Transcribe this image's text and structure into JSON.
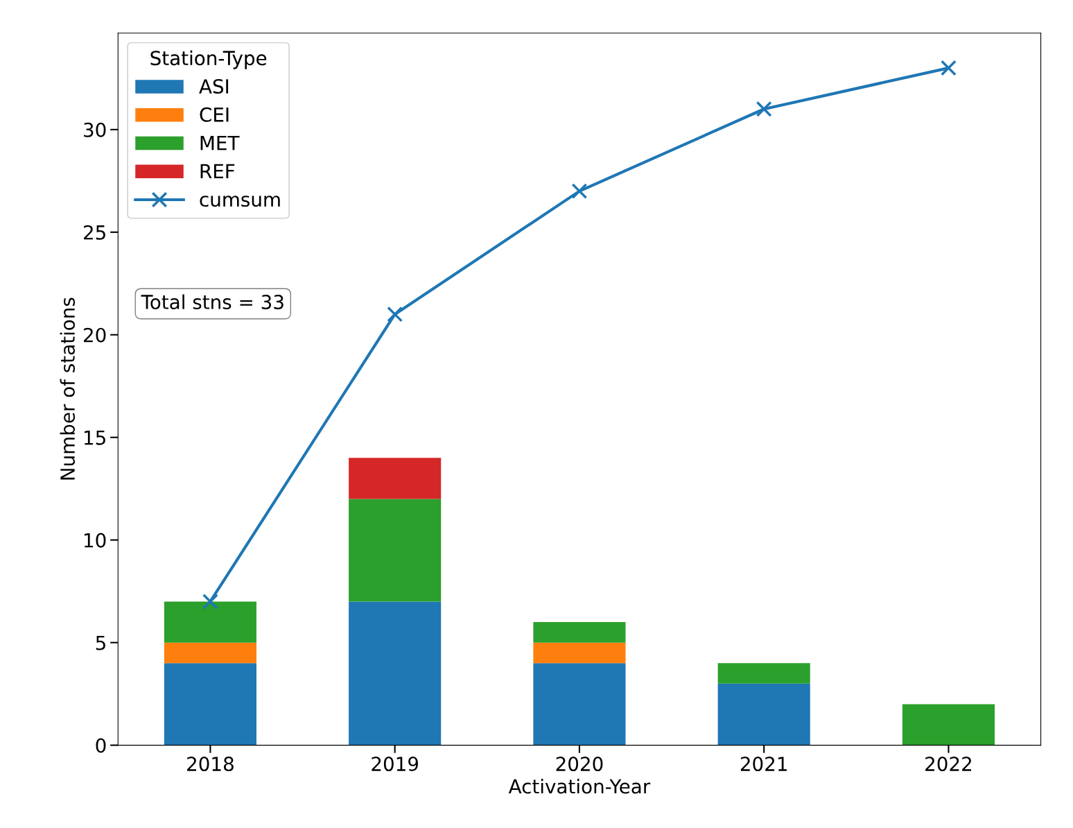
{
  "chart_data": {
    "type": "bar",
    "stacked": true,
    "xlabel": "Activation-Year",
    "ylabel": "Number of stations",
    "legend_title": "Station-Type",
    "legend": "top left",
    "grid": false,
    "x": [
      2018,
      2019,
      2020,
      2021,
      2022
    ],
    "series": [
      {
        "name": "ASI",
        "color": "#1f77b4",
        "values": [
          4,
          7,
          4,
          3,
          0
        ]
      },
      {
        "name": "CEI",
        "color": "#ff7f0e",
        "values": [
          1,
          0,
          1,
          0,
          0
        ]
      },
      {
        "name": "MET",
        "color": "#2ca02c",
        "values": [
          2,
          5,
          1,
          1,
          2
        ]
      },
      {
        "name": "REF",
        "color": "#d62728",
        "values": [
          0,
          2,
          0,
          0,
          0
        ]
      },
      {
        "name": "cumsum",
        "type": "line",
        "marker": "cross",
        "line_style": "solid",
        "color": "#1f77b4",
        "values": [
          7,
          21,
          27,
          31,
          33
        ]
      }
    ],
    "xlim": [
      2017.5,
      2022.5
    ],
    "xticks": [
      2018,
      2019,
      2020,
      2021,
      2022
    ],
    "ylim": [
      0,
      34.7
    ],
    "yticks": [
      0,
      5,
      10,
      15,
      20,
      25,
      30
    ],
    "annotations": [
      "Total stns = 33"
    ]
  }
}
